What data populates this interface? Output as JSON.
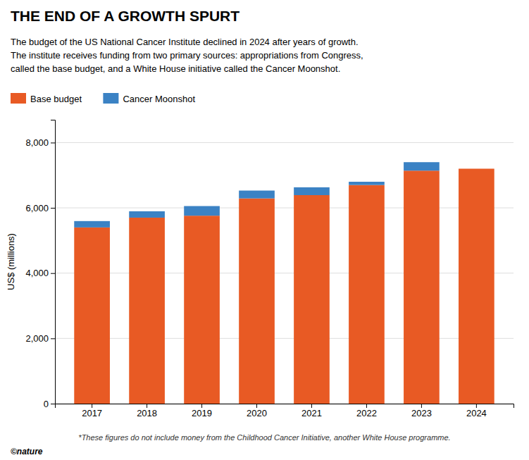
{
  "chart_data": {
    "type": "bar",
    "stacked": true,
    "title": "THE END OF A GROWTH SPURT",
    "subtitle": [
      "The budget of the US National Cancer Institute declined in 2024 after years of growth.",
      "The institute receives funding from two primary sources: appropriations from Congress,",
      "called the base budget, and a White House initiative called the Cancer Moonshot."
    ],
    "ylabel": "US$ (millions)",
    "categories": [
      "2017",
      "2018",
      "2019",
      "2020",
      "2021",
      "2022",
      "2023",
      "2024"
    ],
    "series": [
      {
        "name": "Base budget",
        "color": "#E85A24",
        "values": [
          5400,
          5700,
          5760,
          6290,
          6390,
          6700,
          7140,
          7200
        ]
      },
      {
        "name": "Cancer Moonshot",
        "color": "#3B82C4",
        "values": [
          195,
          195,
          295,
          240,
          240,
          100,
          260,
          0
        ]
      }
    ],
    "ylim": [
      0,
      8700
    ],
    "yticks": [
      0,
      {
        "value": 2000,
        "label": "2,000"
      },
      {
        "value": 4000,
        "label": "4,000"
      },
      {
        "value": 6000,
        "label": "6,000"
      },
      {
        "value": 8000,
        "label": "8,000"
      }
    ],
    "grid": true,
    "legend": "top-left",
    "annotations": [
      "*These figures do not include money from the Childhood Cancer Initiative, another White House programme.",
      "©nature"
    ]
  }
}
